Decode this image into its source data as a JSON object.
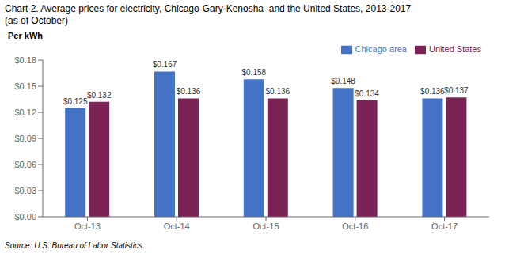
{
  "chart_data": {
    "type": "bar",
    "title": "Chart 2. Average prices for electricity, Chicago-Gary-Kenosha  and the United States, 2013-2017\n(as of October)",
    "ylabel": "Per kWh",
    "source": "Source: U.S. Bureau of Labor Statistics.",
    "categories": [
      "Oct-13",
      "Oct-14",
      "Oct-15",
      "Oct-16",
      "Oct-17"
    ],
    "series": [
      {
        "name": "Chicago area",
        "color": "#4472C4",
        "values": [
          0.125,
          0.167,
          0.158,
          0.148,
          0.136
        ],
        "value_labels": [
          "$0.125",
          "$0.167",
          "$0.158",
          "$0.148",
          "$0.136"
        ]
      },
      {
        "name": "United States",
        "color": "#7B2355",
        "values": [
          0.132,
          0.136,
          0.136,
          0.134,
          0.137
        ],
        "value_labels": [
          "$0.132",
          "$0.136",
          "$0.136",
          "$0.134",
          "$0.137"
        ]
      }
    ],
    "ylim": [
      0,
      0.18
    ],
    "yticks": [
      {
        "value": 0,
        "label": "$0.00"
      },
      {
        "value": 0.03,
        "label": "$0.03"
      },
      {
        "value": 0.06,
        "label": "$0.06"
      },
      {
        "value": 0.09,
        "label": "$0.09"
      },
      {
        "value": 0.12,
        "label": "$0.12"
      },
      {
        "value": 0.15,
        "label": "$0.15"
      },
      {
        "value": 0.18,
        "label": "$0.18"
      }
    ],
    "data_labels": true,
    "legend": "upper right",
    "grid": false
  }
}
